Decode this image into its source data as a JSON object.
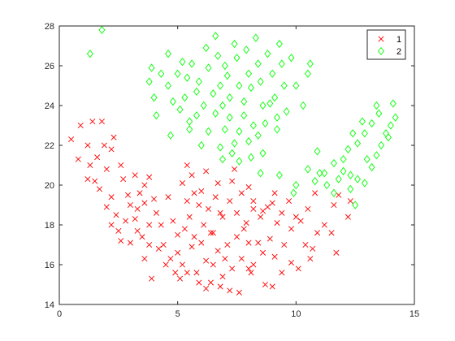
{
  "chart_data": {
    "type": "scatter",
    "title": "",
    "xlabel": "",
    "ylabel": "",
    "xlim": [
      0,
      15
    ],
    "ylim": [
      14,
      28
    ],
    "xticks": [
      0,
      5,
      10,
      15
    ],
    "yticks": [
      14,
      16,
      18,
      20,
      22,
      24,
      26,
      28
    ],
    "grid": false,
    "box": true,
    "legend_position": "top-right",
    "series": [
      {
        "name": "1",
        "marker": "x",
        "color": "#ff0000",
        "points": [
          [
            0.5,
            22.3
          ],
          [
            1.2,
            22.0
          ],
          [
            1.4,
            23.2
          ],
          [
            0.9,
            23.0
          ],
          [
            1.8,
            23.2
          ],
          [
            0.8,
            21.3
          ],
          [
            1.6,
            21.4
          ],
          [
            2.3,
            22.4
          ],
          [
            2.2,
            21.8
          ],
          [
            1.2,
            20.3
          ],
          [
            1.5,
            20.2
          ],
          [
            2.0,
            20.8
          ],
          [
            1.3,
            21.0
          ],
          [
            1.9,
            22.0
          ],
          [
            1.7,
            19.8
          ],
          [
            2.2,
            19.4
          ],
          [
            2.6,
            21.0
          ],
          [
            2.0,
            18.9
          ],
          [
            2.4,
            18.5
          ],
          [
            2.9,
            19.5
          ],
          [
            2.7,
            20.3
          ],
          [
            2.2,
            18.0
          ],
          [
            2.5,
            17.7
          ],
          [
            3.0,
            17.1
          ],
          [
            3.2,
            18.3
          ],
          [
            3.6,
            19.1
          ],
          [
            3.2,
            20.5
          ],
          [
            3.6,
            20.0
          ],
          [
            3.0,
            19.0
          ],
          [
            3.8,
            20.4
          ],
          [
            3.3,
            18.8
          ],
          [
            3.8,
            18.0
          ],
          [
            3.5,
            17.4
          ],
          [
            3.6,
            16.3
          ],
          [
            3.4,
            19.6
          ],
          [
            4.0,
            19.3
          ],
          [
            4.3,
            18.0
          ],
          [
            4.6,
            19.4
          ],
          [
            4.8,
            18.2
          ],
          [
            5.0,
            17.5
          ],
          [
            4.4,
            17.0
          ],
          [
            4.7,
            16.3
          ],
          [
            5.0,
            16.6
          ],
          [
            5.3,
            17.8
          ],
          [
            5.5,
            18.4
          ],
          [
            5.7,
            17.4
          ],
          [
            5.2,
            16.0
          ],
          [
            5.6,
            16.9
          ],
          [
            6.0,
            17.1
          ],
          [
            6.4,
            17.6
          ],
          [
            6.2,
            16.2
          ],
          [
            5.8,
            15.6
          ],
          [
            6.4,
            15.1
          ],
          [
            6.7,
            16.7
          ],
          [
            7.0,
            16.3
          ],
          [
            6.9,
            15.4
          ],
          [
            7.3,
            15.8
          ],
          [
            7.1,
            17.0
          ],
          [
            7.5,
            17.4
          ],
          [
            7.8,
            17.8
          ],
          [
            8.0,
            17.1
          ],
          [
            7.7,
            16.3
          ],
          [
            8.2,
            16.0
          ],
          [
            8.4,
            17.1
          ],
          [
            8.6,
            16.6
          ],
          [
            8.9,
            17.3
          ],
          [
            9.1,
            16.4
          ],
          [
            9.5,
            17.0
          ],
          [
            9.8,
            17.8
          ],
          [
            10.2,
            18.2
          ],
          [
            10.4,
            17.0
          ],
          [
            10.7,
            16.8
          ],
          [
            10.9,
            17.6
          ],
          [
            11.2,
            18.0
          ],
          [
            11.5,
            17.6
          ],
          [
            11.7,
            16.6
          ],
          [
            12.2,
            18.4
          ],
          [
            12.3,
            19.2
          ],
          [
            11.8,
            19.5
          ],
          [
            11.6,
            19.0
          ],
          [
            10.8,
            19.6
          ],
          [
            10.5,
            18.8
          ],
          [
            10.0,
            18.4
          ],
          [
            9.7,
            19.2
          ],
          [
            9.4,
            18.6
          ],
          [
            9.2,
            18.1
          ],
          [
            9.1,
            19.6
          ],
          [
            8.8,
            18.9
          ],
          [
            8.5,
            18.4
          ],
          [
            8.2,
            18.8
          ],
          [
            7.9,
            18.1
          ],
          [
            7.5,
            18.6
          ],
          [
            7.2,
            19.2
          ],
          [
            6.9,
            18.4
          ],
          [
            6.6,
            19.4
          ],
          [
            6.3,
            18.8
          ],
          [
            6.1,
            18.0
          ],
          [
            5.9,
            19.0
          ],
          [
            5.7,
            19.6
          ],
          [
            5.4,
            19.2
          ],
          [
            5.2,
            20.1
          ],
          [
            5.4,
            21.0
          ],
          [
            5.6,
            20.5
          ],
          [
            6.2,
            20.7
          ],
          [
            6.0,
            19.7
          ],
          [
            6.7,
            20.1
          ],
          [
            7.4,
            20.8
          ],
          [
            7.3,
            20.2
          ],
          [
            7.7,
            19.6
          ],
          [
            8.0,
            19.9
          ],
          [
            8.2,
            19.2
          ],
          [
            8.6,
            18.7
          ],
          [
            9.0,
            19.1
          ],
          [
            6.8,
            18.6
          ],
          [
            6.5,
            17.6
          ],
          [
            6.5,
            16.0
          ],
          [
            6.8,
            14.9
          ],
          [
            7.2,
            14.7
          ],
          [
            7.6,
            14.6
          ],
          [
            8.0,
            15.8
          ],
          [
            8.1,
            15.6
          ],
          [
            8.7,
            15.0
          ],
          [
            9.0,
            14.9
          ],
          [
            9.4,
            15.6
          ],
          [
            9.8,
            16.1
          ],
          [
            10.1,
            15.8
          ],
          [
            10.6,
            16.3
          ],
          [
            5.1,
            15.3
          ],
          [
            5.4,
            15.6
          ],
          [
            5.9,
            15.1
          ],
          [
            6.2,
            14.8
          ],
          [
            4.2,
            16.8
          ],
          [
            4.9,
            15.6
          ],
          [
            3.9,
            15.3
          ],
          [
            4.5,
            16.0
          ],
          [
            3.8,
            17.0
          ],
          [
            4.1,
            18.6
          ],
          [
            2.8,
            18.2
          ],
          [
            3.3,
            17.7
          ],
          [
            2.6,
            17.2
          ]
        ]
      },
      {
        "name": "2",
        "marker": "diamond",
        "color": "#00ff00",
        "points": [
          [
            1.3,
            26.6
          ],
          [
            1.8,
            27.8
          ],
          [
            3.8,
            25.2
          ],
          [
            3.9,
            25.9
          ],
          [
            4.0,
            24.4
          ],
          [
            4.3,
            25.6
          ],
          [
            4.1,
            23.5
          ],
          [
            4.6,
            26.6
          ],
          [
            4.6,
            25.0
          ],
          [
            4.8,
            24.2
          ],
          [
            5.0,
            25.6
          ],
          [
            5.2,
            26.2
          ],
          [
            5.1,
            23.8
          ],
          [
            5.3,
            24.4
          ],
          [
            5.4,
            25.4
          ],
          [
            5.6,
            26.1
          ],
          [
            5.5,
            23.2
          ],
          [
            5.8,
            24.7
          ],
          [
            5.9,
            25.2
          ],
          [
            6.1,
            24.0
          ],
          [
            6.2,
            26.9
          ],
          [
            6.3,
            25.9
          ],
          [
            6.5,
            24.6
          ],
          [
            6.6,
            27.5
          ],
          [
            6.7,
            26.5
          ],
          [
            6.8,
            25.0
          ],
          [
            6.9,
            24.0
          ],
          [
            7.0,
            26.0
          ],
          [
            7.1,
            25.5
          ],
          [
            7.2,
            24.4
          ],
          [
            7.4,
            27.1
          ],
          [
            7.5,
            26.4
          ],
          [
            7.6,
            25.0
          ],
          [
            7.8,
            24.2
          ],
          [
            7.9,
            26.8
          ],
          [
            8.0,
            25.6
          ],
          [
            8.1,
            24.9
          ],
          [
            8.3,
            27.4
          ],
          [
            8.4,
            26.1
          ],
          [
            8.5,
            25.2
          ],
          [
            8.6,
            24.0
          ],
          [
            8.8,
            26.6
          ],
          [
            9.0,
            25.6
          ],
          [
            9.1,
            24.4
          ],
          [
            9.3,
            27.1
          ],
          [
            9.4,
            26.1
          ],
          [
            9.5,
            25.0
          ],
          [
            9.6,
            23.7
          ],
          [
            9.8,
            26.4
          ],
          [
            10.0,
            25.0
          ],
          [
            10.3,
            24.0
          ],
          [
            10.5,
            25.6
          ],
          [
            4.7,
            22.5
          ],
          [
            5.5,
            22.8
          ],
          [
            5.8,
            23.5
          ],
          [
            6.0,
            22.0
          ],
          [
            6.3,
            22.7
          ],
          [
            6.6,
            23.6
          ],
          [
            6.8,
            21.9
          ],
          [
            7.0,
            22.8
          ],
          [
            7.2,
            23.4
          ],
          [
            7.4,
            22.1
          ],
          [
            7.6,
            22.7
          ],
          [
            7.8,
            23.5
          ],
          [
            8.0,
            22.2
          ],
          [
            8.2,
            23.0
          ],
          [
            8.4,
            22.5
          ],
          [
            8.7,
            23.1
          ],
          [
            8.9,
            24.1
          ],
          [
            9.2,
            23.4
          ],
          [
            6.9,
            21.3
          ],
          [
            7.3,
            21.6
          ],
          [
            7.6,
            21.2
          ],
          [
            8.1,
            21.4
          ],
          [
            8.6,
            21.6
          ],
          [
            8.5,
            20.6
          ],
          [
            9.3,
            20.5
          ],
          [
            10.0,
            20.0
          ],
          [
            10.5,
            20.8
          ],
          [
            11.0,
            20.6
          ],
          [
            11.3,
            20.0
          ],
          [
            11.8,
            20.3
          ],
          [
            12.0,
            20.7
          ],
          [
            12.3,
            20.5
          ],
          [
            11.6,
            19.6
          ],
          [
            12.3,
            19.8
          ],
          [
            12.6,
            20.3
          ],
          [
            12.9,
            20.1
          ],
          [
            13.0,
            21.3
          ],
          [
            13.2,
            20.9
          ],
          [
            13.4,
            21.5
          ],
          [
            13.6,
            22.0
          ],
          [
            13.8,
            22.6
          ],
          [
            14.0,
            23.0
          ],
          [
            14.2,
            23.4
          ],
          [
            13.9,
            22.4
          ],
          [
            13.5,
            23.6
          ],
          [
            13.2,
            23.1
          ],
          [
            12.9,
            22.6
          ],
          [
            12.6,
            22.1
          ],
          [
            12.2,
            21.8
          ],
          [
            12.0,
            21.3
          ],
          [
            11.6,
            21.1
          ],
          [
            11.2,
            20.6
          ],
          [
            12.4,
            22.6
          ],
          [
            12.8,
            23.2
          ],
          [
            13.4,
            24.0
          ],
          [
            14.1,
            24.1
          ],
          [
            12.5,
            19.0
          ],
          [
            10.8,
            20.2
          ],
          [
            9.9,
            19.6
          ],
          [
            10.9,
            21.7
          ],
          [
            10.6,
            26.1
          ],
          [
            9.2,
            22.8
          ]
        ]
      }
    ]
  }
}
